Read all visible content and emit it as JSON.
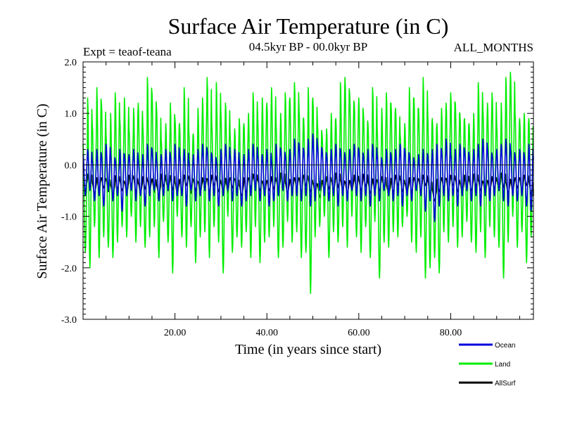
{
  "chart_data": {
    "type": "line",
    "title": "Surface Air Temperature (in C)",
    "subtitle_left": "Expt = teaof-teana",
    "subtitle_center": "04.5kyr BP - 00.0kyr BP",
    "subtitle_right": "ALL_MONTHS",
    "xlabel": "Time (in years since start)",
    "ylabel": "Surface Air Temperature (in C)",
    "xlim": [
      0,
      98
    ],
    "ylim": [
      -3.0,
      2.0
    ],
    "x_ticks": [
      20,
      40,
      60,
      80
    ],
    "x_tick_labels": [
      "20.00",
      "40.00",
      "60.00",
      "80.00"
    ],
    "y_ticks": [
      -3.0,
      -2.0,
      -1.0,
      0.0,
      1.0,
      2.0
    ],
    "y_tick_labels": [
      "-3.0",
      "-2.0",
      "-1.0",
      "0.0",
      "1.0",
      "2.0"
    ],
    "zero_line": true,
    "legend_position": "bottom-right",
    "samples_per_year": 12,
    "series": [
      {
        "name": "AllSurf",
        "color": "#000000",
        "amplitude": [
          0.1,
          0.12,
          0.1,
          0.15,
          0.1,
          0.12,
          0.1,
          0.14,
          0.1,
          0.12,
          0.1,
          0.15,
          0.1,
          0.12,
          0.1,
          0.13,
          0.1,
          0.12,
          0.1,
          0.14,
          0.1,
          0.12,
          0.1,
          0.15,
          0.1,
          0.12,
          0.1,
          0.13,
          0.1,
          0.12,
          0.1,
          0.14,
          0.1,
          0.12,
          0.1,
          0.15,
          0.1,
          0.12,
          0.1,
          0.13,
          0.1,
          0.12,
          0.1,
          0.14,
          0.1,
          0.12,
          0.1,
          0.15,
          0.1,
          0.12,
          0.1,
          0.13,
          0.1,
          0.12,
          0.1,
          0.14,
          0.1,
          0.12,
          0.1,
          0.15,
          0.1,
          0.12,
          0.1,
          0.13,
          0.1,
          0.12,
          0.1,
          0.14,
          0.1,
          0.12,
          0.1,
          0.15,
          0.1,
          0.12,
          0.1,
          0.13,
          0.1,
          0.12,
          0.1,
          0.14,
          0.1,
          0.12,
          0.1,
          0.15,
          0.1,
          0.12,
          0.1,
          0.13,
          0.1,
          0.12,
          0.1,
          0.14,
          0.1,
          0.12,
          0.1,
          0.15,
          0.1,
          0.12,
          0.1
        ],
        "offset": [
          -0.4,
          -0.3,
          -0.45,
          -0.4,
          -0.35,
          -0.4,
          -0.5,
          -0.35,
          -0.4,
          -0.45,
          -0.3,
          -0.4,
          -0.45,
          -0.35,
          -0.4,
          -0.4,
          -0.5,
          -0.3,
          -0.4,
          -0.35,
          -0.45,
          -0.4,
          -0.3,
          -0.4,
          -0.4,
          -0.45,
          -0.35,
          -0.4,
          -0.3,
          -0.4,
          -0.45,
          -0.4,
          -0.35,
          -0.4,
          -0.5,
          -0.4,
          -0.35,
          -0.3,
          -0.4,
          -0.45,
          -0.4,
          -0.35,
          -0.4,
          -0.3,
          -0.45,
          -0.4,
          -0.35,
          -0.4,
          -0.3,
          -0.4,
          -0.45,
          -0.5,
          -0.4,
          -0.35,
          -0.4,
          -0.3,
          -0.4,
          -0.45,
          -0.4,
          -0.35,
          -0.4,
          -0.3,
          -0.45,
          -0.4,
          -0.4,
          -0.35,
          -0.5,
          -0.4,
          -0.3,
          -0.4,
          -0.45,
          -0.4,
          -0.35,
          -0.4,
          -0.3,
          -0.45,
          -0.6,
          -0.4,
          -0.35,
          -0.4,
          -0.3,
          -0.4,
          -0.45,
          -0.35,
          -0.4,
          -0.3,
          -0.4,
          -0.45,
          -0.4,
          -0.35,
          -0.4,
          -0.3,
          -0.45,
          -0.4,
          -0.35,
          -0.4,
          -0.3,
          -0.45,
          -0.7
        ]
      },
      {
        "name": "Land",
        "color": "#00ee00",
        "peaks": [
          0.4,
          1.3,
          0.8,
          1.5,
          1.2,
          0.6,
          1.0,
          1.4,
          0.9,
          1.3,
          0.7,
          1.1,
          1.2,
          0.8,
          1.7,
          1.4,
          1.1,
          0.5,
          0.8,
          1.2,
          0.9,
          0.8,
          1.5,
          0.7,
          0.6,
          1.1,
          1.3,
          1.7,
          0.8,
          1.6,
          1.0,
          1.2,
          0.6,
          0.7,
          0.9,
          0.8,
          1.0,
          1.4,
          0.9,
          1.3,
          1.2,
          1.5,
          0.8,
          1.0,
          1.4,
          1.3,
          1.6,
          1.1,
          0.9,
          1.5,
          1.3,
          0.8,
          0.6,
          0.7,
          1.0,
          0.9,
          1.6,
          1.7,
          1.4,
          1.2,
          1.3,
          1.0,
          0.8,
          1.5,
          0.7,
          1.1,
          1.4,
          1.2,
          1.1,
          0.6,
          0.8,
          1.5,
          1.3,
          1.1,
          1.7,
          1.0,
          0.9,
          0.8,
          1.1,
          1.2,
          1.4,
          1.2,
          1.0,
          0.9,
          0.8,
          1.0,
          1.6,
          1.1,
          1.2,
          1.4,
          0.8,
          1.2,
          1.7,
          1.8,
          1.0,
          0.9,
          1.0,
          0.9,
          0.7
        ],
        "troughs": [
          -1.7,
          -2.0,
          -1.2,
          -1.8,
          -1.4,
          -1.6,
          -1.8,
          -1.5,
          -1.2,
          -1.4,
          -1.0,
          -1.5,
          -1.2,
          -1.6,
          -1.4,
          -1.2,
          -1.8,
          -1.1,
          -1.5,
          -2.1,
          -1.0,
          -1.4,
          -1.6,
          -1.2,
          -1.9,
          -1.4,
          -1.3,
          -1.8,
          -1.2,
          -1.5,
          -2.1,
          -1.0,
          -1.7,
          -1.4,
          -1.6,
          -1.3,
          -1.8,
          -1.2,
          -1.9,
          -1.5,
          -1.4,
          -1.2,
          -1.8,
          -1.6,
          -1.1,
          -1.5,
          -1.3,
          -1.8,
          -1.7,
          -2.5,
          -1.4,
          -1.2,
          -1.0,
          -1.8,
          -1.3,
          -1.5,
          -1.2,
          -1.6,
          -1.0,
          -1.4,
          -1.7,
          -1.2,
          -1.8,
          -1.1,
          -2.2,
          -1.5,
          -1.6,
          -1.3,
          -1.4,
          -1.2,
          -1.0,
          -1.5,
          -1.7,
          -1.4,
          -2.2,
          -2.0,
          -1.8,
          -2.1,
          -1.3,
          -1.5,
          -1.2,
          -1.6,
          -1.4,
          -1.1,
          -1.5,
          -1.7,
          -1.3,
          -1.8,
          -1.2,
          -1.4,
          -1.6,
          -2.2,
          -1.5,
          -1.0,
          -1.6,
          -1.3,
          -1.9,
          -1.4,
          -1.2
        ]
      },
      {
        "name": "Ocean",
        "color": "#0000dd",
        "peaks": [
          0.2,
          0.3,
          0.1,
          0.3,
          0.2,
          0.4,
          0.2,
          0.1,
          0.3,
          0.2,
          0.2,
          0.3,
          0.1,
          0.2,
          0.4,
          0.3,
          0.1,
          0.2,
          0.3,
          0.2,
          0.4,
          0.2,
          0.3,
          0.1,
          0.2,
          0.3,
          0.4,
          0.3,
          0.2,
          0.1,
          0.3,
          0.4,
          0.2,
          0.3,
          0.1,
          0.2,
          0.3,
          0.4,
          0.2,
          0.2,
          0.3,
          0.1,
          0.4,
          0.3,
          0.2,
          0.3,
          0.5,
          0.4,
          0.3,
          0.5,
          0.6,
          0.4,
          0.3,
          0.2,
          0.3,
          0.4,
          0.3,
          0.2,
          0.3,
          0.4,
          0.3,
          0.2,
          0.3,
          0.4,
          0.2,
          0.1,
          0.3,
          0.2,
          0.3,
          0.4,
          0.3,
          0.2,
          0.1,
          0.2,
          0.3,
          0.2,
          0.3,
          0.4,
          0.3,
          0.5,
          0.2,
          0.3,
          0.4,
          0.3,
          0.2,
          0.3,
          0.4,
          0.5,
          0.3,
          0.2,
          0.3,
          0.4,
          0.5,
          0.3,
          0.2,
          0.3,
          0.2,
          0.4,
          0.1
        ],
        "troughs": [
          -0.6,
          -0.5,
          -0.7,
          -0.6,
          -0.8,
          -0.5,
          -0.7,
          -0.6,
          -0.9,
          -0.6,
          -0.5,
          -0.7,
          -0.6,
          -0.8,
          -0.6,
          -0.5,
          -0.7,
          -0.6,
          -0.5,
          -0.7,
          -0.6,
          -0.6,
          -0.8,
          -0.5,
          -0.7,
          -0.6,
          -0.5,
          -0.7,
          -0.6,
          -0.8,
          -0.6,
          -0.5,
          -0.7,
          -0.6,
          -0.8,
          -0.7,
          -0.6,
          -0.5,
          -0.7,
          -0.6,
          -0.8,
          -0.7,
          -0.6,
          -0.5,
          -0.7,
          -0.6,
          -0.6,
          -0.7,
          -0.6,
          -0.8,
          -0.7,
          -0.5,
          -0.6,
          -0.7,
          -0.6,
          -0.8,
          -0.6,
          -0.7,
          -0.5,
          -0.6,
          -0.7,
          -0.6,
          -0.8,
          -0.6,
          -0.7,
          -0.5,
          -0.6,
          -0.7,
          -0.6,
          -0.8,
          -0.6,
          -0.7,
          -0.5,
          -0.6,
          -0.9,
          -0.7,
          -1.1,
          -0.8,
          -0.6,
          -0.7,
          -0.6,
          -0.8,
          -0.6,
          -0.5,
          -0.7,
          -0.6,
          -0.8,
          -0.6,
          -0.7,
          -0.6,
          -0.5,
          -0.7,
          -0.8,
          -0.6,
          -0.7,
          -0.6,
          -0.8,
          -0.9,
          -0.6
        ]
      }
    ]
  }
}
